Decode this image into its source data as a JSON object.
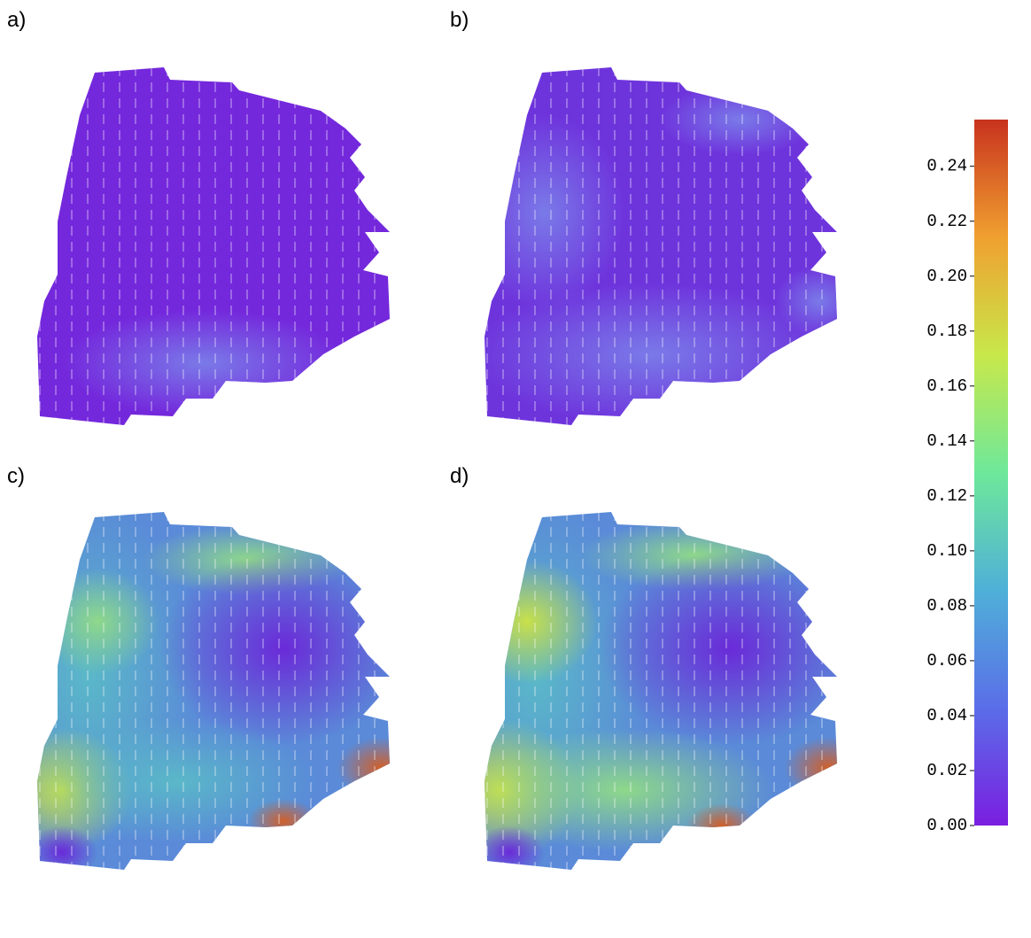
{
  "figure": {
    "panels": [
      "a)",
      "b)",
      "c)",
      "d)"
    ]
  },
  "chart_data": {
    "type": "colorbar",
    "clim": [
      0,
      0.257
    ],
    "ticks": [
      {
        "value": 0,
        "label": "0.00"
      },
      0.02,
      0.04,
      0.06,
      0.08,
      {
        "value": 0.1,
        "label": "0.10"
      },
      0.12,
      0.14,
      0.16,
      0.18,
      {
        "value": 0.2,
        "label": "0.20"
      },
      0.22,
      0.24
    ],
    "colors": [
      "#7a1ee0",
      "#5a6ee8",
      "#4fb0d8",
      "#6ee89a",
      "#c8e84a",
      "#f0a030",
      "#c8321e"
    ]
  }
}
